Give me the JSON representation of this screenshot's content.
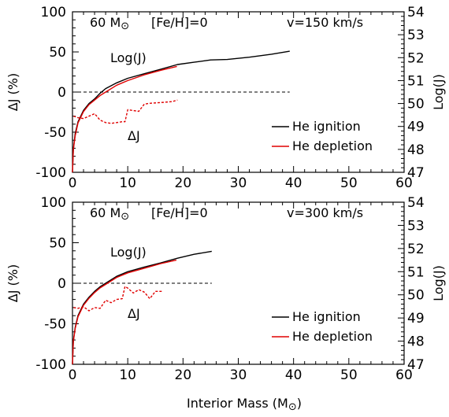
{
  "xlabel": "Interior Mass (M",
  "xlabel_sym": "⊙",
  "xlabel_close": ")",
  "chart_data": [
    {
      "type": "line",
      "mass_prefix": "60 M",
      "mass_sym": "⊙",
      "metallicity": "[Fe/H]=0",
      "velocity": "v=150 km/s",
      "ylabel_left": "ΔJ (%)",
      "ylabel_right": "Log(J)",
      "xlim": [
        0,
        60
      ],
      "ylim_left": [
        -100,
        100
      ],
      "ylim_right": [
        47,
        54
      ],
      "xticks": [
        "0",
        "10",
        "20",
        "30",
        "40",
        "50",
        "60"
      ],
      "yticks_left": [
        "100",
        "50",
        "0",
        "-50",
        "-100"
      ],
      "yticks_right": [
        "54",
        "53",
        "52",
        "51",
        "50",
        "49",
        "48",
        "47"
      ],
      "label_logj": "Log(J)",
      "label_dj": "ΔJ",
      "legend_position": "lower-right",
      "series": [
        {
          "name": "He ignition",
          "color": "#000000",
          "style": "solid",
          "axis": "right",
          "x": [
            0,
            0.15,
            0.5,
            1,
            2,
            3,
            4,
            5,
            6,
            8,
            10,
            13,
            16,
            19,
            22,
            25,
            28,
            32,
            36,
            39.3
          ],
          "y": [
            47.0,
            48.0,
            48.7,
            49.2,
            49.7,
            50.0,
            50.2,
            50.45,
            50.65,
            50.9,
            51.1,
            51.3,
            51.5,
            51.7,
            51.8,
            51.9,
            51.92,
            52.02,
            52.15,
            52.28
          ]
        },
        {
          "name": "He depletion",
          "color": "#e00000",
          "style": "solid",
          "axis": "right",
          "x": [
            0,
            0.15,
            0.5,
            1,
            2,
            3,
            4,
            5,
            6,
            8,
            10,
            13,
            16,
            18.9
          ],
          "y": [
            47.0,
            48.0,
            48.6,
            49.15,
            49.65,
            49.95,
            50.15,
            50.35,
            50.5,
            50.8,
            51.0,
            51.25,
            51.45,
            51.62
          ]
        },
        {
          "name": "ΔJ",
          "color": "#e00000",
          "style": "dashed",
          "axis": "left",
          "x": [
            0.2,
            1,
            2,
            3,
            4,
            4.5,
            5,
            6,
            7,
            8,
            9,
            9.5,
            10,
            11,
            12,
            13,
            14,
            16,
            18,
            19
          ],
          "y": [
            -30,
            -32,
            -33,
            -30,
            -27,
            -31,
            -35,
            -38,
            -39,
            -38,
            -37,
            -37,
            -22,
            -23,
            -24,
            -15,
            -14,
            -13,
            -12,
            -10
          ]
        }
      ]
    },
    {
      "type": "line",
      "mass_prefix": "60 M",
      "mass_sym": "⊙",
      "metallicity": "[Fe/H]=0",
      "velocity": "v=300 km/s",
      "ylabel_left": "ΔJ (%)",
      "ylabel_right": "Log(J)",
      "xlim": [
        0,
        60
      ],
      "ylim_left": [
        -100,
        100
      ],
      "ylim_right": [
        47,
        54
      ],
      "xticks": [
        "0",
        "10",
        "20",
        "30",
        "40",
        "50",
        "60"
      ],
      "yticks_left": [
        "100",
        "50",
        "0",
        "-50",
        "-100"
      ],
      "yticks_right": [
        "54",
        "53",
        "52",
        "51",
        "50",
        "49",
        "48",
        "47"
      ],
      "label_logj": "Log(J)",
      "label_dj": "ΔJ",
      "legend_position": "lower-right",
      "series": [
        {
          "name": "He ignition",
          "color": "#000000",
          "style": "solid",
          "axis": "right",
          "x": [
            0,
            0.15,
            0.5,
            1,
            2,
            3,
            4,
            5,
            6,
            8,
            10,
            13,
            16,
            19,
            22,
            25.2
          ],
          "y": [
            47.0,
            48.0,
            48.6,
            49.1,
            49.6,
            49.9,
            50.15,
            50.35,
            50.5,
            50.8,
            51.0,
            51.2,
            51.38,
            51.58,
            51.75,
            51.88
          ]
        },
        {
          "name": "He depletion",
          "color": "#e00000",
          "style": "solid",
          "axis": "right",
          "x": [
            0,
            0.15,
            0.5,
            1,
            2,
            3,
            4,
            5,
            6,
            8,
            10,
            13,
            16,
            18.8
          ],
          "y": [
            47.0,
            48.0,
            48.55,
            49.05,
            49.55,
            49.85,
            50.1,
            50.3,
            50.45,
            50.75,
            50.95,
            51.15,
            51.35,
            51.5
          ]
        },
        {
          "name": "ΔJ",
          "color": "#e00000",
          "style": "dashed",
          "axis": "left",
          "x": [
            0.2,
            1,
            2,
            3,
            4,
            5,
            6,
            7,
            8,
            9,
            9.5,
            10,
            11,
            12,
            13,
            14,
            15,
            16.2
          ],
          "y": [
            -30,
            -31,
            -29,
            -34,
            -30,
            -31,
            -21,
            -24,
            -20,
            -19,
            -4,
            -6,
            -12,
            -8,
            -11,
            -19,
            -10,
            -10
          ]
        }
      ]
    }
  ]
}
